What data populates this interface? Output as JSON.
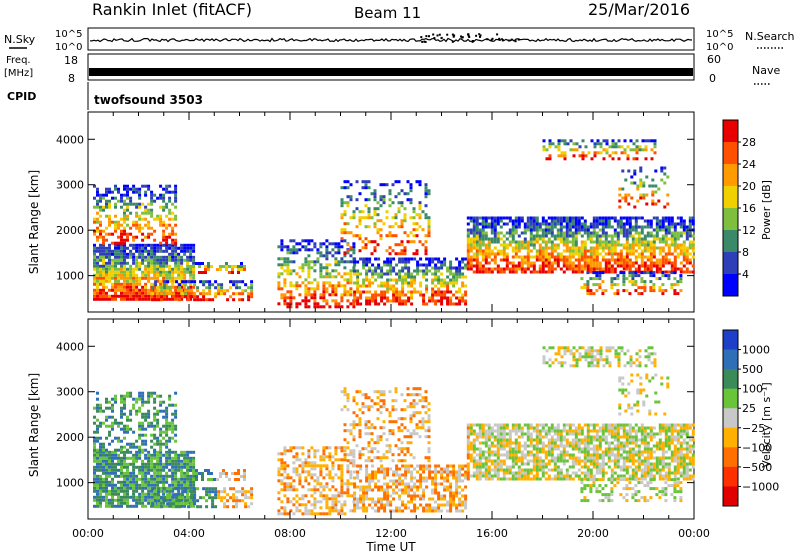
{
  "header": {
    "station": "Rankin Inlet (fitACF)",
    "beam": "Beam 11",
    "date": "25/Mar/2016"
  },
  "top_panels": {
    "nsky_label": "N.Sky",
    "nsky_ticks": [
      "10^5",
      "10^0"
    ],
    "nsearch_label": "N.Search",
    "freq_label": "Freq.",
    "freq_unit": "[MHz]",
    "freq_ticks": [
      "18",
      "8"
    ],
    "nave_ticks": [
      "60",
      "0"
    ],
    "nave_label": "Nave",
    "cpid_label": "CPID",
    "cpid_value": "twofsound 3503"
  },
  "chart_data": [
    {
      "type": "heatmap",
      "panel": "power",
      "xlabel": "",
      "ylabel": "Slant Range [km]",
      "x_ticks": [
        "00:00",
        "04:00",
        "08:00",
        "12:00",
        "16:00",
        "20:00",
        "00:00"
      ],
      "xlim_hours": [
        0,
        24
      ],
      "ylim": [
        200,
        4600
      ],
      "y_ticks": [
        1000,
        2000,
        3000,
        4000
      ],
      "colorbar": {
        "label": "Power [dB]",
        "ticks": [
          "4",
          "8",
          "12",
          "16",
          "20",
          "24",
          "28"
        ],
        "colors": [
          "#0000ff",
          "#2f3fb8",
          "#3a8a6a",
          "#7fbf3f",
          "#f0d000",
          "#ff9a00",
          "#ff5000",
          "#e80000"
        ]
      }
    },
    {
      "type": "heatmap",
      "panel": "velocity",
      "xlabel": "Time UT",
      "ylabel": "Slant Range [km]",
      "x_ticks": [
        "00:00",
        "04:00",
        "08:00",
        "12:00",
        "16:00",
        "20:00",
        "00:00"
      ],
      "xlim_hours": [
        0,
        24
      ],
      "ylim": [
        200,
        4600
      ],
      "y_ticks": [
        1000,
        2000,
        3000,
        4000
      ],
      "colorbar": {
        "label": "Velocity [m s⁻¹]",
        "ticks": [
          "1000",
          "500",
          "100",
          "25",
          "−25",
          "−100",
          "−500",
          "−1000"
        ],
        "colors": [
          "#1e3fc8",
          "#2f6fb8",
          "#3a8a5a",
          "#6ac43a",
          "#c8c8c8",
          "#ffb000",
          "#ff7000",
          "#ff3000",
          "#e00000"
        ]
      }
    }
  ]
}
